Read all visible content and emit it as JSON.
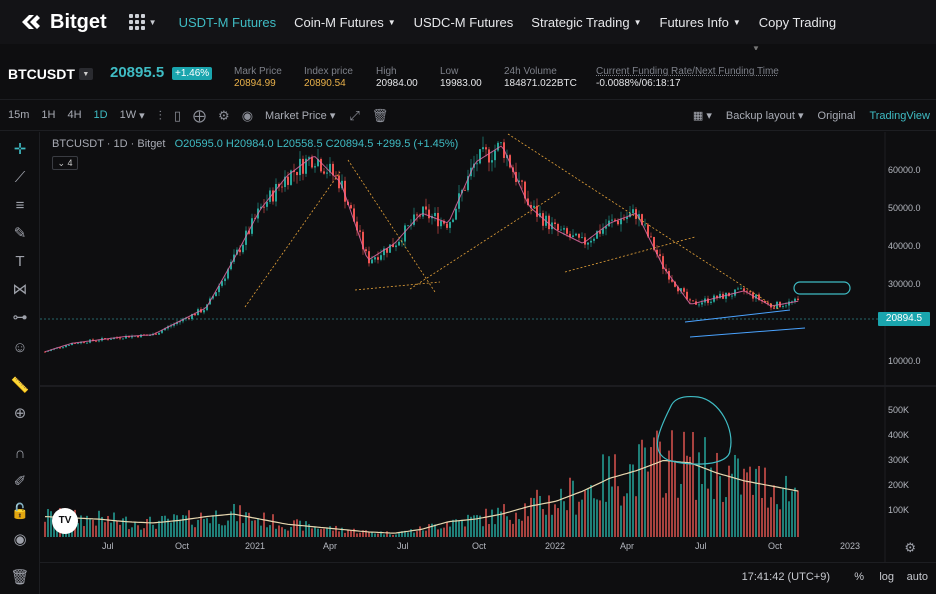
{
  "brand": {
    "name": "Bitget"
  },
  "nav": {
    "items": [
      {
        "label": "USDT-M Futures",
        "active": true,
        "caret": false
      },
      {
        "label": "Coin-M Futures",
        "active": false,
        "caret": true
      },
      {
        "label": "USDC-M Futures",
        "active": false,
        "caret": false
      },
      {
        "label": "Strategic Trading",
        "active": false,
        "caret": true
      },
      {
        "label": "Futures Info",
        "active": false,
        "caret": true
      },
      {
        "label": "Copy Trading",
        "active": false,
        "caret": false
      }
    ]
  },
  "ticker": {
    "symbol": "BTCUSDT",
    "last_price": "20895.5",
    "change_pct": "+1.46%",
    "stats": [
      {
        "label": "Mark Price",
        "value": "20894.99",
        "highlight": true
      },
      {
        "label": "Index price",
        "value": "20890.54",
        "highlight": true
      },
      {
        "label": "High",
        "value": "20984.00",
        "highlight": false
      },
      {
        "label": "Low",
        "value": "19983.00",
        "highlight": false
      },
      {
        "label": "24h Volume",
        "value": "184871.022BTC",
        "highlight": false
      },
      {
        "label": "Current Funding Rate/Next Funding Time",
        "value": "-0.0088%/06:18:17",
        "highlight": false
      }
    ]
  },
  "toolbar": {
    "intervals": [
      "15m",
      "1H",
      "4H",
      "1D",
      "1W"
    ],
    "active_interval": "1D",
    "price_type": "Market Price",
    "backup_layout": "Backup layout",
    "views": [
      "Original",
      "TradingView"
    ],
    "active_view": "TradingView"
  },
  "legend": {
    "symbol_line": "BTCUSDT · 1D · Bitget",
    "ohlc": "O20595.0 H20984.0 L20558.5 C20894.5 +299.5 (+1.45%)",
    "indicator_count": "4"
  },
  "chart_data": {
    "type": "line",
    "title": "BTCUSDT · 1D · Bitget",
    "price_axis_labels": [
      "60000.0",
      "50000.0",
      "40000.0",
      "30000.0",
      "10000.0"
    ],
    "volume_axis_labels": [
      "500K",
      "400K",
      "300K",
      "200K",
      "100K"
    ],
    "x_tick_labels": [
      "Jul",
      "Oct",
      "2021",
      "Apr",
      "Jul",
      "Oct",
      "2022",
      "Apr",
      "Jul",
      "Oct",
      "2023"
    ],
    "current_price": "20894.5",
    "ylim": [
      0,
      68000
    ],
    "volume_ylim": [
      0,
      560000
    ],
    "series": [
      {
        "x": [
          "2020-05",
          "2020-07",
          "2020-09",
          "2020-10",
          "2020-11",
          "2020-12",
          "2021-01",
          "2021-02",
          "2021-03",
          "2021-04",
          "2021-05",
          "2021-06",
          "2021-07",
          "2021-08",
          "2021-09",
          "2021-10",
          "2021-11",
          "2021-12",
          "2022-01",
          "2022-02",
          "2022-03",
          "2022-04",
          "2022-05",
          "2022-06",
          "2022-07",
          "2022-08",
          "2022-09",
          "2022-10",
          "2022-11"
        ],
        "values": [
          6000,
          8500,
          9500,
          10500,
          11000,
          15000,
          19000,
          33000,
          48000,
          58000,
          64000,
          56000,
          33000,
          38000,
          47000,
          44000,
          62000,
          67000,
          49000,
          42000,
          38000,
          44000,
          47000,
          31000,
          20000,
          22000,
          24000,
          19500,
          20900
        ]
      }
    ],
    "volume": {
      "values": [
        80000,
        75000,
        70000,
        60000,
        55000,
        65000,
        80000,
        90000,
        70000,
        50000,
        40000,
        30000,
        20000,
        15000,
        30000,
        60000,
        70000,
        90000,
        120000,
        140000,
        180000,
        230000,
        260000,
        300000,
        290000,
        250000,
        220000,
        200000,
        180000
      ]
    }
  },
  "footer": {
    "time": "17:41:42 (UTC+9)",
    "options": [
      "%",
      "log",
      "auto"
    ]
  }
}
